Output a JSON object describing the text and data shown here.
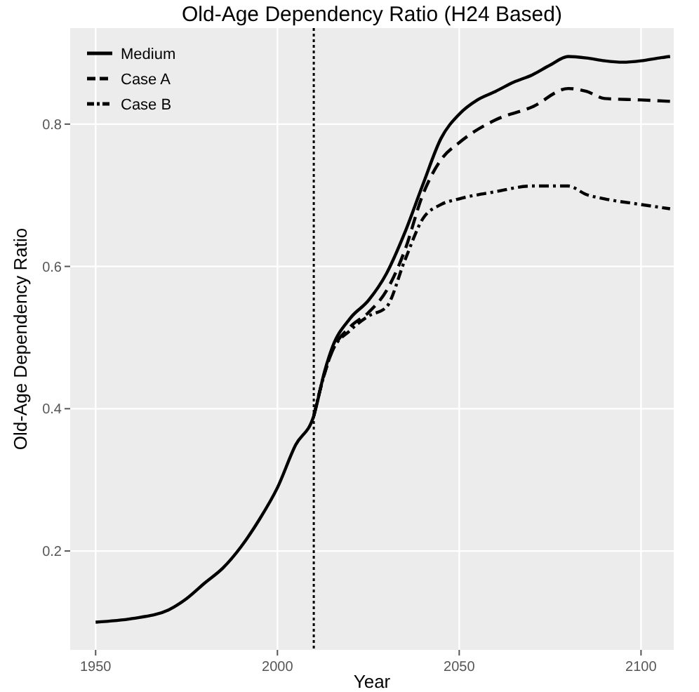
{
  "chart_data": {
    "type": "line",
    "title": "Old-Age Dependency Ratio (H24 Based)",
    "xlabel": "Year",
    "ylabel": "Old-Age Dependency Ratio",
    "xlim": [
      1943,
      2109
    ],
    "ylim": [
      0.061,
      0.935
    ],
    "xticks": [
      1950,
      2000,
      2050,
      2100
    ],
    "yticks": [
      0.2,
      0.4,
      0.6,
      0.8
    ],
    "grid": true,
    "legend": "top left",
    "ref_lines": [
      {
        "axis": "x",
        "value": 2010,
        "line_style": "dotted",
        "color": "#000000"
      }
    ],
    "series": [
      {
        "name": "Medium",
        "color": "#000000",
        "line_style": "solid",
        "x": [
          1950,
          1960,
          1970,
          1975,
          1980,
          1985,
          1990,
          1995,
          2000,
          2005,
          2010,
          2013,
          2015,
          2020,
          2025,
          2030,
          2035,
          2040,
          2045,
          2050,
          2055,
          2060,
          2065,
          2070,
          2075,
          2080,
          2085,
          2090,
          2095,
          2100,
          2105,
          2108
        ],
        "values": [
          0.1,
          0.105,
          0.117,
          0.133,
          0.155,
          0.176,
          0.206,
          0.244,
          0.289,
          0.349,
          0.39,
          0.453,
          0.485,
          0.527,
          0.552,
          0.59,
          0.647,
          0.715,
          0.78,
          0.814,
          0.834,
          0.846,
          0.859,
          0.869,
          0.883,
          0.895,
          0.893,
          0.889,
          0.887,
          0.889,
          0.893,
          0.895
        ]
      },
      {
        "name": "Case A",
        "color": "#000000",
        "line_style": "dashed",
        "x": [
          2010,
          2013,
          2015,
          2020,
          2025,
          2030,
          2035,
          2040,
          2045,
          2050,
          2060,
          2070,
          2080,
          2085,
          2090,
          2100,
          2108
        ],
        "values": [
          0.39,
          0.45,
          0.48,
          0.515,
          0.535,
          0.566,
          0.622,
          0.701,
          0.75,
          0.774,
          0.806,
          0.824,
          0.85,
          0.846,
          0.836,
          0.834,
          0.832
        ]
      },
      {
        "name": "Case B",
        "color": "#000000",
        "line_style": "dotted",
        "x": [
          2010,
          2013,
          2015,
          2020,
          2025,
          2030,
          2035,
          2040,
          2045,
          2050,
          2060,
          2070,
          2080,
          2085,
          2090,
          2100,
          2108
        ],
        "values": [
          0.39,
          0.45,
          0.48,
          0.51,
          0.53,
          0.543,
          0.608,
          0.667,
          0.687,
          0.695,
          0.705,
          0.713,
          0.713,
          0.701,
          0.695,
          0.687,
          0.681
        ]
      }
    ]
  }
}
